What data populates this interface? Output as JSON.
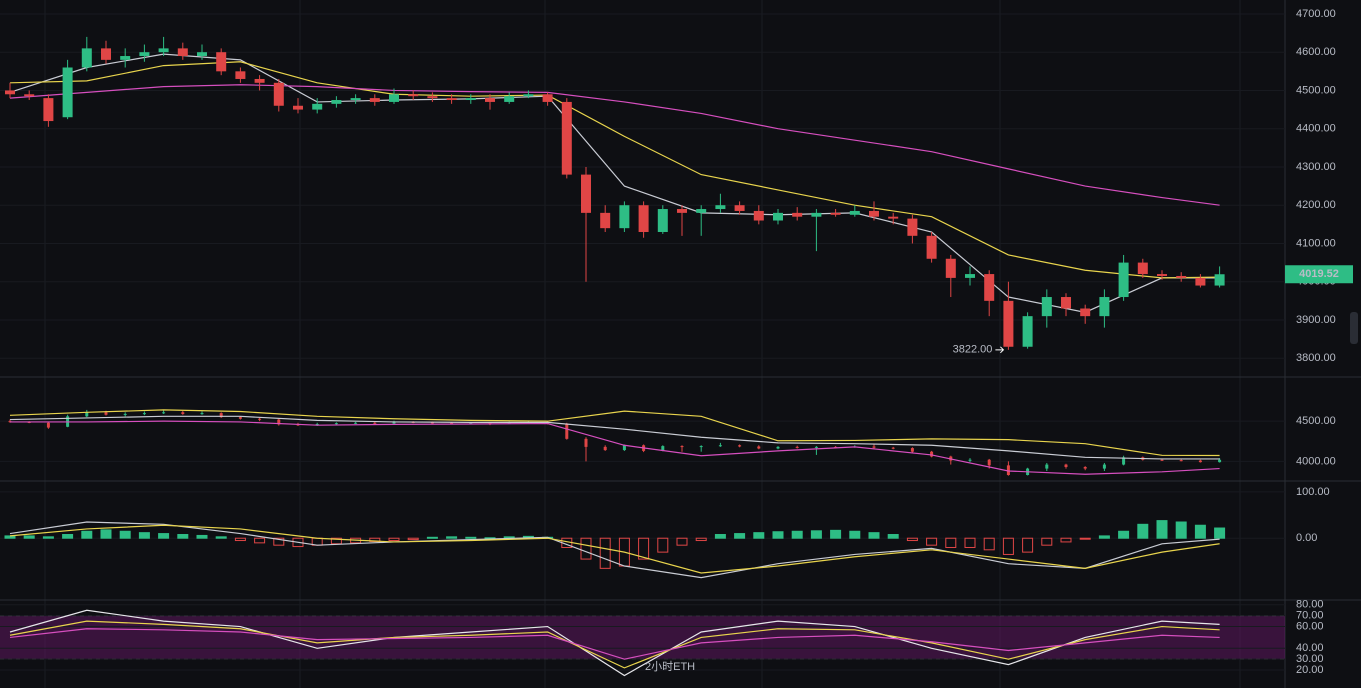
{
  "chart_data": [
    {
      "type": "candlestick",
      "up_color": "#2ebd85",
      "down_color": "#e04646",
      "ylim": [
        3764,
        4726
      ],
      "yticks": [
        {
          "value": 4700,
          "label": "4700.00"
        },
        {
          "value": 4600,
          "label": "4600.00"
        },
        {
          "value": 4500,
          "label": "4500.00"
        },
        {
          "value": 4400,
          "label": "4400.00"
        },
        {
          "value": 4300,
          "label": "4300.00"
        },
        {
          "value": 4200,
          "label": "4200.00"
        },
        {
          "value": 4100,
          "label": "4100.00"
        },
        {
          "value": 4000,
          "label": "4000.00"
        },
        {
          "value": 3900,
          "label": "3900.00"
        },
        {
          "value": 3800,
          "label": "3800.00"
        }
      ],
      "open": [
        4500,
        4490,
        4480,
        4430,
        4560,
        4610,
        4580,
        4590,
        4600,
        4610,
        4590,
        4600,
        4550,
        4530,
        4520,
        4460,
        4450,
        4465,
        4475,
        4480,
        4470,
        4490,
        4485,
        4480,
        4475,
        4480,
        4470,
        4485,
        4490,
        4470,
        4280,
        4180,
        4140,
        4200,
        4130,
        4190,
        4180,
        4190,
        4200,
        4185,
        4160,
        4180,
        4170,
        4180,
        4175,
        4185,
        4170,
        4165,
        4120,
        4060,
        4010,
        4020,
        3950,
        3830,
        3910,
        3960,
        3930,
        3910,
        3960,
        4050,
        4020,
        4015,
        4010,
        3990
      ],
      "high": [
        4520,
        4500,
        4490,
        4580,
        4640,
        4630,
        4610,
        4620,
        4640,
        4625,
        4620,
        4610,
        4560,
        4540,
        4530,
        4480,
        4480,
        4485,
        4490,
        4490,
        4505,
        4500,
        4495,
        4490,
        4490,
        4490,
        4495,
        4500,
        4495,
        4480,
        4300,
        4200,
        4210,
        4210,
        4200,
        4200,
        4200,
        4230,
        4210,
        4200,
        4190,
        4195,
        4190,
        4190,
        4200,
        4210,
        4180,
        4175,
        4130,
        4070,
        4040,
        4030,
        4000,
        3920,
        3980,
        3970,
        3940,
        3980,
        4070,
        4060,
        4030,
        4025,
        4020,
        4040
      ],
      "low": [
        4480,
        4475,
        4405,
        4425,
        4550,
        4570,
        4560,
        4575,
        4590,
        4580,
        4580,
        4540,
        4520,
        4500,
        4445,
        4440,
        4440,
        4455,
        4465,
        4460,
        4465,
        4475,
        4470,
        4465,
        4465,
        4450,
        4465,
        4480,
        4460,
        4270,
        4000,
        4130,
        4130,
        4115,
        4125,
        4120,
        4120,
        4180,
        4175,
        4150,
        4150,
        4160,
        4080,
        4170,
        4170,
        4160,
        4150,
        4100,
        4050,
        3960,
        3990,
        3910,
        3822,
        3825,
        3880,
        3910,
        3890,
        3880,
        3950,
        4010,
        4005,
        4000,
        3985,
        3985
      ],
      "close": [
        4490,
        4485,
        4420,
        4560,
        4610,
        4580,
        4590,
        4600,
        4610,
        4590,
        4600,
        4550,
        4530,
        4520,
        4460,
        4450,
        4465,
        4475,
        4480,
        4470,
        4490,
        4485,
        4480,
        4475,
        4480,
        4470,
        4485,
        4490,
        4470,
        4280,
        4180,
        4140,
        4200,
        4130,
        4190,
        4180,
        4190,
        4200,
        4185,
        4160,
        4180,
        4170,
        4180,
        4175,
        4185,
        4170,
        4165,
        4120,
        4060,
        4010,
        4020,
        3950,
        3830,
        3910,
        3960,
        3930,
        3910,
        3960,
        4050,
        4020,
        4015,
        4010,
        3990,
        4019.52
      ],
      "lines": [
        {
          "color": "#c9ccd4",
          "x": [
            0,
            4,
            8,
            12,
            16,
            20,
            24,
            28,
            32,
            36,
            40,
            44,
            48,
            52,
            56,
            60,
            63
          ],
          "values": [
            4495,
            4560,
            4595,
            4580,
            4470,
            4475,
            4478,
            4485,
            4250,
            4180,
            4175,
            4180,
            4130,
            3960,
            3920,
            4010,
            4010
          ]
        },
        {
          "color": "#e8d44d",
          "x": [
            0,
            4,
            8,
            12,
            16,
            20,
            24,
            28,
            32,
            36,
            40,
            44,
            48,
            52,
            56,
            60,
            63
          ],
          "values": [
            4520,
            4525,
            4565,
            4575,
            4520,
            4490,
            4485,
            4488,
            4380,
            4280,
            4240,
            4200,
            4170,
            4070,
            4030,
            4010,
            4012
          ]
        },
        {
          "color": "#d64fbf",
          "x": [
            0,
            4,
            8,
            12,
            16,
            20,
            24,
            28,
            32,
            36,
            40,
            44,
            48,
            52,
            56,
            60,
            63
          ],
          "values": [
            4480,
            4495,
            4510,
            4515,
            4510,
            4500,
            4497,
            4495,
            4470,
            4440,
            4400,
            4370,
            4340,
            4295,
            4250,
            4220,
            4200
          ]
        }
      ],
      "annotation": {
        "value": 3822,
        "label": "3822.00"
      }
    },
    {
      "type": "bollinger",
      "ylim": [
        3768,
        5012
      ],
      "yticks": [
        {
          "value": 4500,
          "label": "4500.00"
        },
        {
          "value": 4000,
          "label": "4000.00"
        }
      ],
      "lines": [
        {
          "color": "#e8d44d",
          "x": [
            0,
            4,
            8,
            12,
            16,
            20,
            24,
            28,
            32,
            36,
            40,
            44,
            48,
            52,
            56,
            60,
            63
          ],
          "values": [
            4573,
            4610,
            4640,
            4620,
            4560,
            4530,
            4510,
            4500,
            4625,
            4560,
            4256,
            4260,
            4280,
            4270,
            4220,
            4075,
            4073
          ]
        },
        {
          "color": "#c9ccd4",
          "x": [
            0,
            4,
            8,
            12,
            16,
            20,
            24,
            28,
            32,
            36,
            40,
            44,
            48,
            52,
            56,
            60,
            63
          ],
          "values": [
            4520,
            4540,
            4560,
            4560,
            4510,
            4490,
            4485,
            4485,
            4400,
            4300,
            4230,
            4220,
            4200,
            4130,
            4050,
            4030,
            4030
          ]
        },
        {
          "color": "#d64fbf",
          "x": [
            0,
            4,
            8,
            12,
            16,
            20,
            24,
            28,
            32,
            36,
            40,
            44,
            48,
            52,
            56,
            60,
            63
          ],
          "values": [
            4490,
            4490,
            4500,
            4490,
            4450,
            4460,
            4465,
            4470,
            4200,
            4070,
            4130,
            4180,
            4080,
            3880,
            3840,
            3870,
            3910
          ]
        }
      ]
    },
    {
      "type": "macd",
      "up_color": "#2ebd85",
      "down_color": "#e04646",
      "ylim": [
        -129,
        117
      ],
      "yticks": [
        {
          "value": 100,
          "label": "100.00"
        },
        {
          "value": 0,
          "label": "0.00"
        }
      ],
      "histogram": [
        5,
        5,
        3,
        8,
        15,
        18,
        15,
        12,
        10,
        8,
        6,
        3,
        -5,
        -10,
        -15,
        -18,
        -15,
        -12,
        -10,
        -7,
        -5,
        -3,
        2,
        3,
        2,
        1,
        3,
        4,
        2,
        -20,
        -45,
        -65,
        -60,
        -45,
        -30,
        -15,
        -5,
        8,
        10,
        12,
        14,
        15,
        16,
        17,
        15,
        12,
        8,
        -5,
        -15,
        -20,
        -20,
        -25,
        -35,
        -30,
        -15,
        -8,
        -2,
        5,
        15,
        30,
        38,
        35,
        28,
        22
      ],
      "lines": [
        {
          "color": "#c9ccd4",
          "x": [
            0,
            4,
            8,
            12,
            16,
            20,
            24,
            28,
            32,
            36,
            40,
            44,
            48,
            52,
            56,
            60,
            63
          ],
          "values": [
            10,
            35,
            30,
            10,
            -15,
            -8,
            -3,
            2,
            -60,
            -85,
            -55,
            -35,
            -22,
            -55,
            -65,
            -12,
            -2
          ]
        },
        {
          "color": "#e8d44d",
          "x": [
            0,
            4,
            8,
            12,
            16,
            20,
            24,
            28,
            32,
            36,
            40,
            44,
            48,
            52,
            56,
            60,
            63
          ],
          "values": [
            5,
            20,
            28,
            20,
            0,
            -8,
            -5,
            0,
            -30,
            -75,
            -60,
            -40,
            -25,
            -45,
            -65,
            -30,
            -12
          ]
        }
      ]
    },
    {
      "type": "rsi",
      "ylim": [
        3.5,
        83.5
      ],
      "band": [
        30,
        70
      ],
      "yticks": [
        {
          "value": 80,
          "label": "80.00"
        },
        {
          "value": 70,
          "label": "70.00"
        },
        {
          "value": 60,
          "label": "60.00"
        },
        {
          "value": 40,
          "label": "40.00"
        },
        {
          "value": 30,
          "label": "30.00"
        },
        {
          "value": 20,
          "label": "20.00"
        }
      ],
      "lines": [
        {
          "color": "#e6e6ea",
          "x": [
            0,
            4,
            8,
            12,
            16,
            20,
            24,
            28,
            32,
            36,
            40,
            44,
            48,
            52,
            56,
            60,
            63
          ],
          "values": [
            55,
            75,
            65,
            60,
            40,
            50,
            55,
            60,
            15,
            55,
            65,
            60,
            40,
            25,
            50,
            65,
            62
          ]
        },
        {
          "color": "#e8d44d",
          "x": [
            0,
            4,
            8,
            12,
            16,
            20,
            24,
            28,
            32,
            36,
            40,
            44,
            48,
            52,
            56,
            60,
            63
          ],
          "values": [
            52,
            65,
            62,
            58,
            45,
            50,
            52,
            55,
            22,
            50,
            58,
            57,
            45,
            30,
            48,
            60,
            57
          ]
        },
        {
          "color": "#d64fbf",
          "x": [
            0,
            4,
            8,
            12,
            16,
            20,
            24,
            28,
            32,
            36,
            40,
            44,
            48,
            52,
            56,
            60,
            63
          ],
          "values": [
            50,
            58,
            57,
            55,
            48,
            49,
            50,
            52,
            30,
            45,
            50,
            52,
            46,
            38,
            45,
            52,
            50
          ]
        }
      ]
    }
  ],
  "watermark": "2小时ETH"
}
